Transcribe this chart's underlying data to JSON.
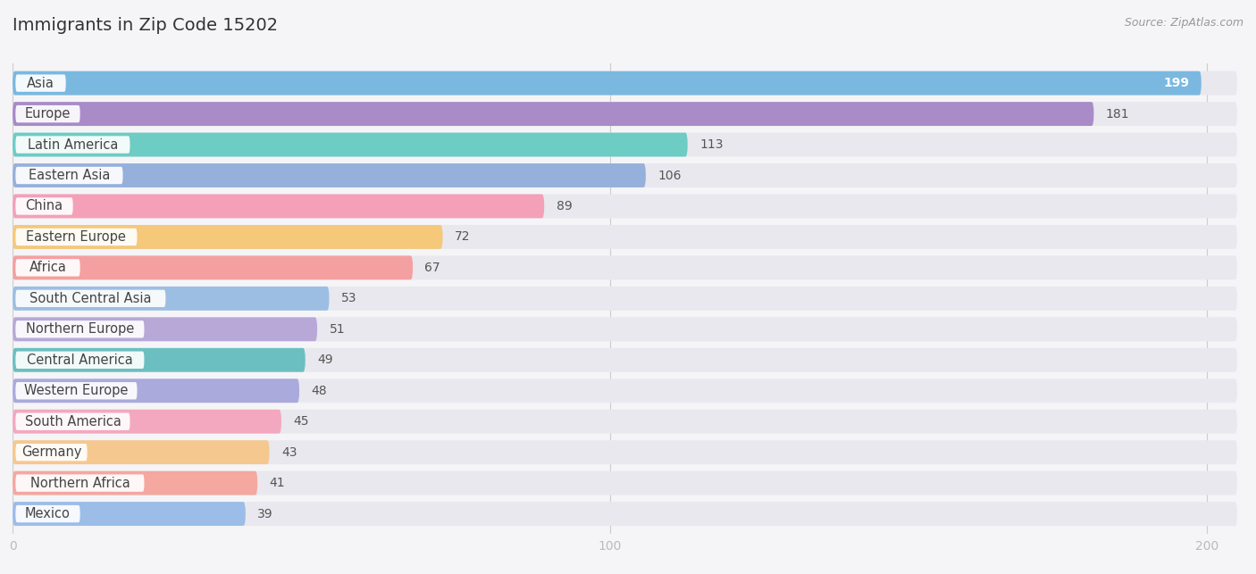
{
  "title": "Immigrants in Zip Code 15202",
  "source": "Source: ZipAtlas.com",
  "categories": [
    "Asia",
    "Europe",
    "Latin America",
    "Eastern Asia",
    "China",
    "Eastern Europe",
    "Africa",
    "South Central Asia",
    "Northern Europe",
    "Central America",
    "Western Europe",
    "South America",
    "Germany",
    "Northern Africa",
    "Mexico"
  ],
  "values": [
    199,
    181,
    113,
    106,
    89,
    72,
    67,
    53,
    51,
    49,
    48,
    45,
    43,
    41,
    39
  ],
  "bar_colors": [
    "#7AB8E0",
    "#A98BC8",
    "#6DCCC4",
    "#96B0DC",
    "#F4A0B8",
    "#F5C87A",
    "#F4A0A0",
    "#9CBEE2",
    "#B8A8D8",
    "#6CBFC0",
    "#AAAADD",
    "#F4A8C0",
    "#F5C890",
    "#F4A8A0",
    "#9BBDE8"
  ],
  "bg_color": "#f5f5f8",
  "bar_bg_color": "#e8e8ee",
  "xlim_max": 205,
  "xticks": [
    0,
    100,
    200
  ],
  "label_fontsize": 10.5,
  "title_fontsize": 14,
  "value_fontsize": 10,
  "inside_threshold": 0.9
}
